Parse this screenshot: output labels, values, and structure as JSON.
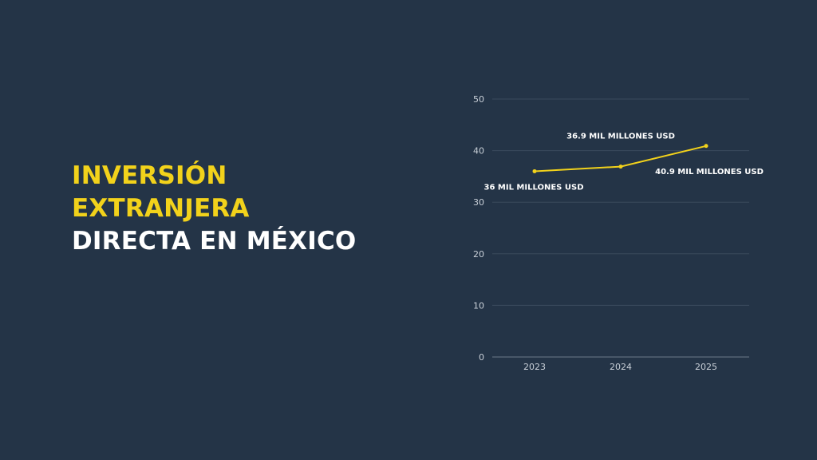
{
  "title": {
    "line1": "INVERSIÓN",
    "line2": "EXTRANJERA",
    "line3": "DIRECTA EN MÉXICO"
  },
  "colors": {
    "background": "#243447",
    "accent": "#f2d21b",
    "text": "#ffffff",
    "grid": "#3a4a5c"
  },
  "chart_data": {
    "type": "line",
    "x": [
      "2023",
      "2024",
      "2025"
    ],
    "series": [
      {
        "values": [
          36,
          36.9,
          40.9
        ]
      }
    ],
    "data_labels": [
      "36 MIL MILLONES USD",
      "36.9 MIL MILLONES USD",
      "40.9 MIL MILLONES USD"
    ],
    "yticks": [
      0,
      10,
      20,
      30,
      40,
      50
    ],
    "ylim": [
      0,
      50
    ],
    "grid": true,
    "legend": "none"
  }
}
